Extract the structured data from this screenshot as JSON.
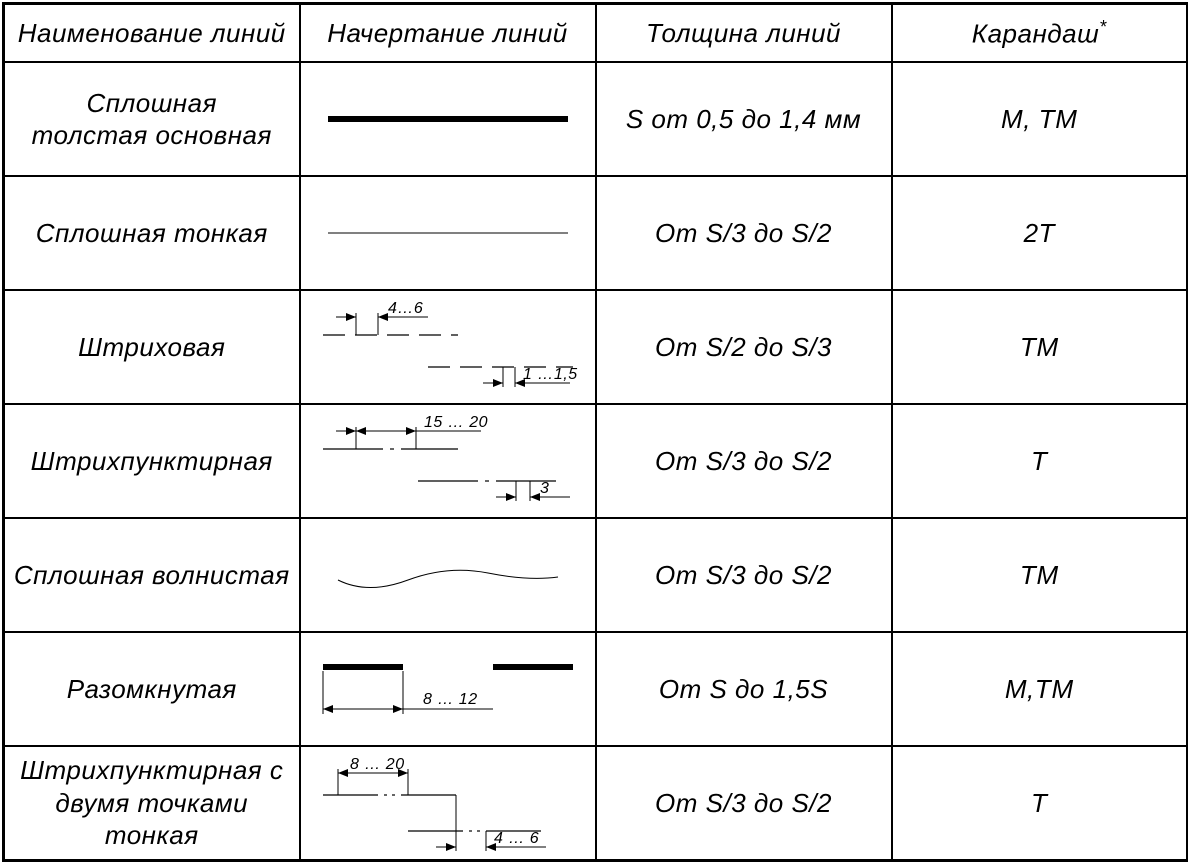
{
  "headers": {
    "name": "Наименование  линий",
    "depiction": "Начертание  линий",
    "thickness": "Толщина  линий",
    "pencil": "Карандаш",
    "pencil_suffix": "*"
  },
  "rows": [
    {
      "name_line1": "Сплошная",
      "name_line2": "толстая основная",
      "thickness": "S от 0,5 до 1,4 мм",
      "pencil": "М,  ТМ",
      "line": {
        "type": "solid-thick",
        "stroke_width": 6,
        "color": "#000000"
      }
    },
    {
      "name_line1": "Сплошная тонкая",
      "name_line2": "",
      "thickness": "От  S/3  до   S/2",
      "pencil": "2Т",
      "line": {
        "type": "solid-thin",
        "stroke_width": 1,
        "color": "#000000"
      }
    },
    {
      "name_line1": "Штриховая",
      "name_line2": "",
      "thickness": "От  S/2  до  S/3",
      "pencil": "ТМ",
      "line": {
        "type": "dashed",
        "stroke_width": 1.2,
        "color": "#000000",
        "dim_top": "4…6",
        "dim_bottom": "1 …1,5"
      }
    },
    {
      "name_line1": "Штрихпунктирная",
      "name_line2": "",
      "thickness": "От  S/3  до   S/2",
      "pencil": "Т",
      "line": {
        "type": "dash-dot",
        "stroke_width": 1.2,
        "color": "#000000",
        "dim_top": "15 … 20",
        "dim_bottom": "3"
      }
    },
    {
      "name_line1": "Сплошная волнистая",
      "name_line2": "",
      "thickness": "От  S/3  до   S/2",
      "pencil": "ТМ",
      "line": {
        "type": "wavy",
        "stroke_width": 1,
        "color": "#000000"
      }
    },
    {
      "name_line1": "Разомкнутая",
      "name_line2": "",
      "thickness": "От  S  до   1,5S",
      "pencil": "М,ТМ",
      "line": {
        "type": "broken",
        "stroke_width": 6,
        "color": "#000000",
        "dim": "8 … 12"
      }
    },
    {
      "name_line1": "Штрихпунктирная с",
      "name_line2": "двумя точками тонкая",
      "thickness": "От  S/3  до   S/2",
      "pencil": "Т",
      "line": {
        "type": "dash-two-dot",
        "stroke_width": 1.2,
        "color": "#000000",
        "dim_top": "8 … 20",
        "dim_bottom": "4 … 6"
      }
    }
  ],
  "styling": {
    "background": "#ffffff",
    "border_color": "#000000",
    "outer_border_width": 3,
    "inner_border_width": 2,
    "font_family": "Segoe UI, Arial, sans-serif",
    "font_style": "italic",
    "header_fontsize": 26,
    "cell_fontsize": 26,
    "dim_fontsize": 16,
    "text_color": "#000000"
  }
}
